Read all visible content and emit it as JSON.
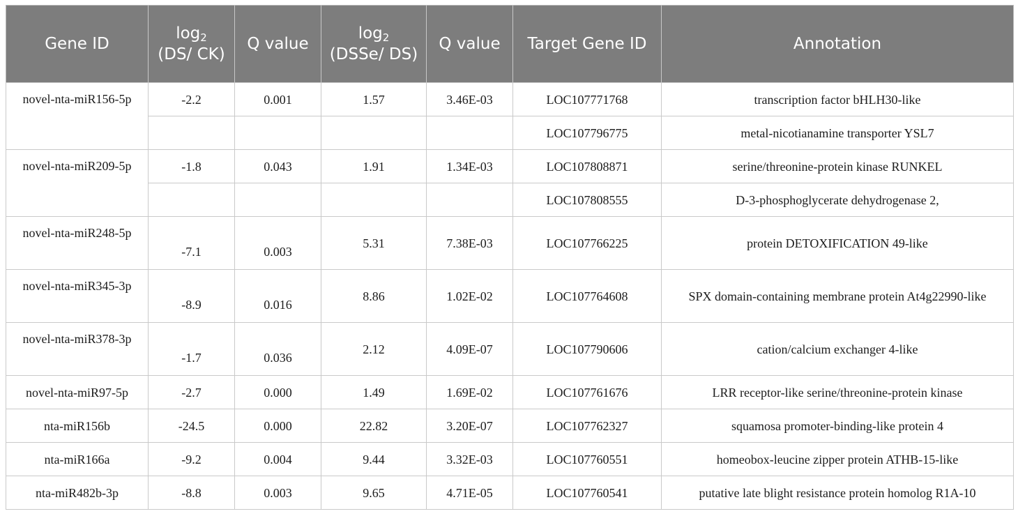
{
  "headers": {
    "gene_id": "Gene ID",
    "log_a": "log",
    "log_a_sub": "2",
    "log_a_rest": "(DS/ CK)",
    "q1": "Q value",
    "log_b": "log",
    "log_b_sub": "2",
    "log_b_rest": "(DSSe/ DS)",
    "q2": "Q value",
    "target": "Target Gene ID",
    "annotation": "Annotation"
  },
  "rows": [
    {
      "gene": "novel-nta-miR156-5p",
      "log_ds_ck": "-2.2",
      "q1": "0.001",
      "log_dsse_ds": "1.57",
      "q2": "3.46E-03",
      "targets": [
        {
          "id": "LOC107771768",
          "annotation": "transcription factor bHLH30-like"
        },
        {
          "id": "LOC107796775",
          "annotation": "metal-nicotianamine transporter YSL7"
        }
      ]
    },
    {
      "gene": "novel-nta-miR209-5p",
      "log_ds_ck": "-1.8",
      "q1": "0.043",
      "log_dsse_ds": "1.91",
      "q2": "1.34E-03",
      "targets": [
        {
          "id": "LOC107808871",
          "annotation": "serine/threonine-protein kinase RUNKEL"
        },
        {
          "id": "LOC107808555",
          "annotation": "D-3-phosphoglycerate dehydrogenase 2,"
        }
      ]
    },
    {
      "gene": "novel-nta-miR248-5p",
      "log_ds_ck": "-7.1",
      "q1": "0.003",
      "log_dsse_ds": "5.31",
      "q2": "7.38E-03",
      "targets": [
        {
          "id": "LOC107766225",
          "annotation": "protein DETOXIFICATION 49-like"
        }
      ]
    },
    {
      "gene": "novel-nta-miR345-3p",
      "log_ds_ck": "-8.9",
      "q1": "0.016",
      "log_dsse_ds": "8.86",
      "q2": "1.02E-02",
      "targets": [
        {
          "id": "LOC107764608",
          "annotation": "SPX domain-containing membrane protein At4g22990-like"
        }
      ]
    },
    {
      "gene": "novel-nta-miR378-3p",
      "log_ds_ck": "-1.7",
      "q1": "0.036",
      "log_dsse_ds": "2.12",
      "q2": "4.09E-07",
      "targets": [
        {
          "id": "LOC107790606",
          "annotation": "cation/calcium exchanger 4-like"
        }
      ]
    },
    {
      "gene": "novel-nta-miR97-5p",
      "log_ds_ck": "-2.7",
      "q1": "0.000",
      "log_dsse_ds": "1.49",
      "q2": "1.69E-02",
      "targets": [
        {
          "id": "LOC107761676",
          "annotation": "LRR receptor-like serine/threonine-protein kinase"
        }
      ]
    },
    {
      "gene": "nta-miR156b",
      "log_ds_ck": "-24.5",
      "q1": "0.000",
      "log_dsse_ds": "22.82",
      "q2": "3.20E-07",
      "targets": [
        {
          "id": "LOC107762327",
          "annotation": "squamosa promoter-binding-like protein 4"
        }
      ]
    },
    {
      "gene": "nta-miR166a",
      "log_ds_ck": "-9.2",
      "q1": "0.004",
      "log_dsse_ds": "9.44",
      "q2": "3.32E-03",
      "targets": [
        {
          "id": "LOC107760551",
          "annotation": "homeobox-leucine zipper protein ATHB-15-like"
        }
      ]
    },
    {
      "gene": "nta-miR482b-3p",
      "log_ds_ck": "-8.8",
      "q1": "0.003",
      "log_dsse_ds": "9.65",
      "q2": "4.71E-05",
      "targets": [
        {
          "id": "LOC107760541",
          "annotation": "putative late blight resistance protein homolog R1A-10"
        }
      ]
    }
  ]
}
